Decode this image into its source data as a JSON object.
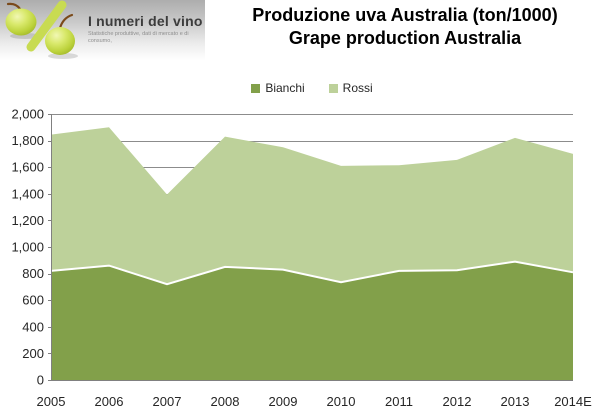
{
  "logo": {
    "title": "I numeri del vino",
    "subtitle": "Statistiche produttive, dati di mercato e di consumo,"
  },
  "header": {
    "title_line1": "Produzione uva Australia (ton/1000)",
    "title_line2": "Grape production Australia"
  },
  "chart_data": {
    "type": "area",
    "stacked": true,
    "title": "Produzione uva Australia (ton/1000) / Grape production Australia",
    "categories": [
      "2005",
      "2006",
      "2007",
      "2008",
      "2009",
      "2010",
      "2011",
      "2012",
      "2013",
      "2014E"
    ],
    "series": [
      {
        "name": "Bianchi",
        "color": "#82A04A",
        "values": [
          820,
          860,
          720,
          850,
          830,
          735,
          820,
          825,
          890,
          810
        ]
      },
      {
        "name": "Rossi",
        "color": "#BDD19A",
        "values": [
          1025,
          1040,
          675,
          980,
          920,
          875,
          795,
          830,
          930,
          890
        ]
      }
    ],
    "totals": [
      1845,
      1900,
      1395,
      1830,
      1750,
      1610,
      1615,
      1655,
      1820,
      1700
    ],
    "xlabel": "",
    "ylabel": "",
    "ylim": [
      0,
      2000
    ],
    "ytick_step": 200,
    "ytick_labels": [
      "0",
      "200",
      "400",
      "600",
      "800",
      "1,000",
      "1,200",
      "1,400",
      "1,600",
      "1,800",
      "2,000"
    ],
    "legend_position": "top",
    "grid": true,
    "gridline_color": "#8c8c8c",
    "axis_color": "#808080",
    "tick_label_color": "#262626",
    "series_divider_color": "#ffffff"
  }
}
